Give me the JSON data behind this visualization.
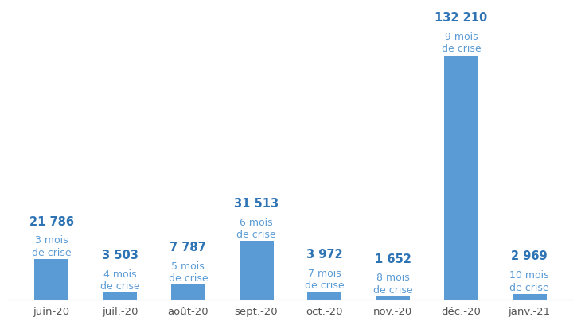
{
  "categories": [
    "juin-20",
    "juil.-20",
    "août-20",
    "sept.-20",
    "oct.-20",
    "nov.-20",
    "déc.-20",
    "janv.-21"
  ],
  "values": [
    21786,
    3503,
    7787,
    31513,
    3972,
    1652,
    132210,
    2969
  ],
  "subtitles": [
    "3 mois\nde crise",
    "4 mois\nde crise",
    "5 mois\nde crise",
    "6 mois\nde crise",
    "7 mois\nde crise",
    "8 mois\nde crise",
    "9 mois\nde crise",
    "10 mois\nde crise"
  ],
  "value_labels": [
    "21 786",
    "3 503",
    "7 787",
    "31 513",
    "3 972",
    "1 652",
    "132 210",
    "2 969"
  ],
  "bar_color": "#5B9BD5",
  "label_color": "#2E74B5",
  "subtitle_color": "#5B9BD5",
  "background_color": "#ffffff",
  "ylim": [
    0,
    155000
  ],
  "bar_width": 0.5,
  "value_fontsize": 10.5,
  "subtitle_fontsize": 9.0,
  "xtick_fontsize": 9.5
}
